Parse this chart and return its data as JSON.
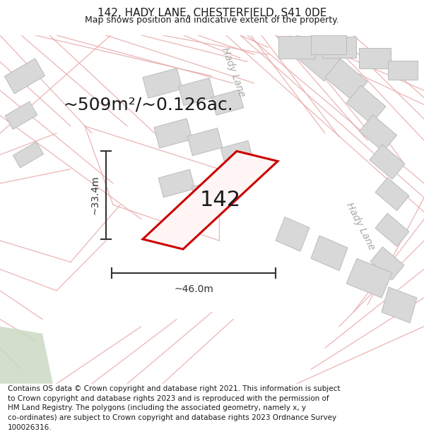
{
  "title": "142, HADY LANE, CHESTERFIELD, S41 0DE",
  "subtitle": "Map shows position and indicative extent of the property.",
  "footer_text": "Contains OS data © Crown copyright and database right 2021. This information is subject\nto Crown copyright and database rights 2023 and is reproduced with the permission of\nHM Land Registry. The polygons (including the associated geometry, namely x, y\nco-ordinates) are subject to Crown copyright and database rights 2023 Ordnance Survey\n100026316.",
  "area_text": "~509m²/~0.126ac.",
  "label_142": "142",
  "dim_width": "~46.0m",
  "dim_height": "~33.4m",
  "road_label_top": "Hady Lane",
  "road_label_right": "Hady Lane",
  "bg_color": "#ffffff",
  "map_bg": "#ffffff",
  "road_color": "#e8a8a8",
  "building_fill": "#d8d8d8",
  "building_edge": "#bbbbbb",
  "property_fill": "#ffffff",
  "property_edge": "#cc0000",
  "green_fill": "#c8d8c0",
  "dim_color": "#333333",
  "text_color": "#1a1a1a",
  "road_label_color": "#aaaaaa",
  "title_fs": 11,
  "subtitle_fs": 9,
  "area_fs": 18,
  "prop_label_fs": 22,
  "footer_fs": 7.5,
  "road_label_fs": 10,
  "dim_fs": 10
}
